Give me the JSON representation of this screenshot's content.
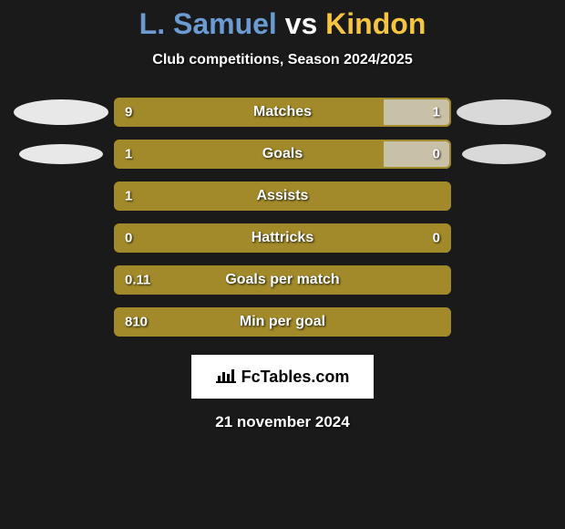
{
  "title": {
    "player1": "L. Samuel",
    "vs": "vs",
    "player2": "Kindon",
    "color_p1": "#6b9bd1",
    "color_vs": "#ffffff",
    "color_p2": "#f5c542"
  },
  "subtitle": "Club competitions, Season 2024/2025",
  "colors": {
    "bar_p1": "#a28a2a",
    "bar_p2": "#c9c0a8",
    "bar_border": "#a28a2a",
    "background": "#1a1a1a",
    "text": "#ffffff"
  },
  "badges": {
    "left": [
      {
        "width": 104,
        "height": 28,
        "fill": "#e8e8e8"
      },
      {
        "width": 92,
        "height": 22,
        "fill": "#e8e8e8"
      }
    ],
    "right": [
      {
        "width": 104,
        "height": 28,
        "fill": "#d9d9d9"
      },
      {
        "width": 92,
        "height": 22,
        "fill": "#d9d9d9"
      }
    ]
  },
  "stats": [
    {
      "label": "Matches",
      "left_value": "9",
      "right_value": "1",
      "left_pct": 80,
      "right_pct": 20,
      "show_left_badge": true,
      "show_right_badge": true
    },
    {
      "label": "Goals",
      "left_value": "1",
      "right_value": "0",
      "left_pct": 80,
      "right_pct": 20,
      "show_left_badge": true,
      "show_right_badge": true
    },
    {
      "label": "Assists",
      "left_value": "1",
      "right_value": "",
      "left_pct": 100,
      "right_pct": 0,
      "show_left_badge": false,
      "show_right_badge": false
    },
    {
      "label": "Hattricks",
      "left_value": "0",
      "right_value": "0",
      "left_pct": 100,
      "right_pct": 0,
      "show_left_badge": false,
      "show_right_badge": false
    },
    {
      "label": "Goals per match",
      "left_value": "0.11",
      "right_value": "",
      "left_pct": 100,
      "right_pct": 0,
      "show_left_badge": false,
      "show_right_badge": false
    },
    {
      "label": "Min per goal",
      "left_value": "810",
      "right_value": "",
      "left_pct": 100,
      "right_pct": 0,
      "show_left_badge": false,
      "show_right_badge": false
    }
  ],
  "brand": {
    "text": "FcTables.com",
    "box_bg": "#ffffff",
    "text_color": "#000000"
  },
  "date": "21 november 2024"
}
